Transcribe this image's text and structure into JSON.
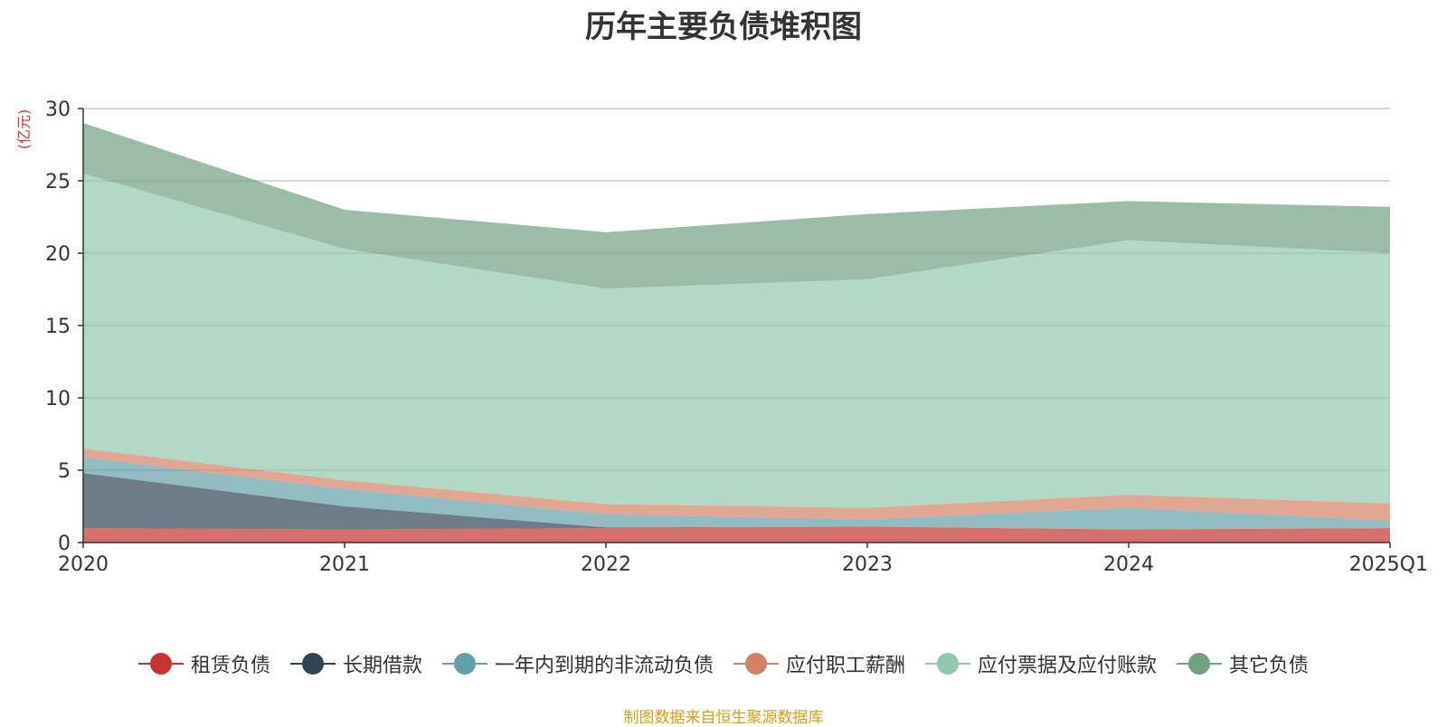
{
  "chart_data": {
    "type": "area",
    "stacked": true,
    "title": "历年主要负债堆积图",
    "unit_label": "(亿元)",
    "categories": [
      "2020",
      "2021",
      "2022",
      "2023",
      "2024",
      "2025Q1"
    ],
    "ylim": [
      0,
      30
    ],
    "yticks": [
      0,
      5,
      10,
      15,
      20,
      25,
      30
    ],
    "grid": true,
    "legend_position": "bottom",
    "series": [
      {
        "name": "租赁负债",
        "color": "#c23531",
        "legend_color": "#c23531",
        "values": [
          1.0,
          0.9,
          1.0,
          1.1,
          0.9,
          1.0
        ]
      },
      {
        "name": "长期借款",
        "color": "#2f4554",
        "legend_color": "#2f4554",
        "values": [
          3.8,
          1.6,
          0.05,
          0.0,
          0.0,
          0.0
        ]
      },
      {
        "name": "一年内到期的非流动负债",
        "color": "#61a0a8",
        "legend_color": "#61a0a8",
        "values": [
          1.1,
          1.2,
          0.9,
          0.5,
          1.5,
          0.5
        ]
      },
      {
        "name": "应付职工薪酬",
        "color": "#d48265",
        "legend_color": "#d48265",
        "values": [
          0.6,
          0.6,
          0.7,
          0.8,
          0.9,
          1.2
        ]
      },
      {
        "name": "应付票据及应付账款",
        "color": "#91c7ae",
        "legend_color": "#91c7ae",
        "values": [
          19.0,
          16.0,
          14.9,
          15.8,
          17.6,
          17.3
        ]
      },
      {
        "name": "其它负债",
        "color": "#749f83",
        "legend_color": "#749f83",
        "values": [
          3.5,
          2.7,
          3.9,
          4.5,
          2.7,
          3.2
        ]
      }
    ],
    "source": "制图数据来自恒生聚源数据库"
  }
}
